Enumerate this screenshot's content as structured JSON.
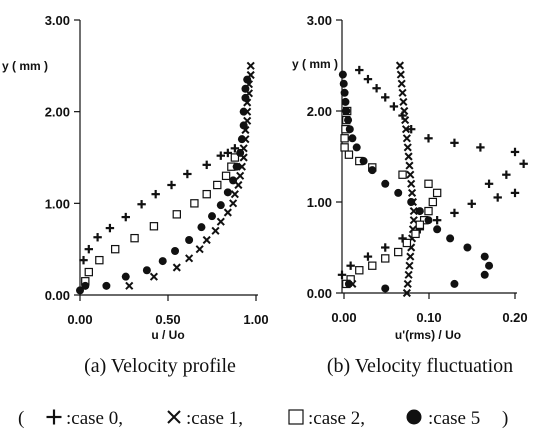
{
  "chart_data": [
    {
      "type": "scatter",
      "ylabel": "y ( mm )",
      "xlabel": "u / Uo",
      "caption": "(a)  Velocity  profile",
      "xlim": [
        0,
        1.0
      ],
      "ylim": [
        0,
        3.0
      ],
      "xticks": [
        "0.00",
        "0.50",
        "1.00"
      ],
      "yticks": [
        "0.00",
        "1.00",
        "2.00",
        "3.00"
      ],
      "series": [
        {
          "key": "case0",
          "marker": "plus",
          "points": [
            [
              0.02,
              0.38
            ],
            [
              0.05,
              0.5
            ],
            [
              0.1,
              0.63
            ],
            [
              0.17,
              0.73
            ],
            [
              0.26,
              0.85
            ],
            [
              0.35,
              0.99
            ],
            [
              0.43,
              1.1
            ],
            [
              0.52,
              1.2
            ],
            [
              0.61,
              1.32
            ],
            [
              0.72,
              1.42
            ],
            [
              0.8,
              1.52
            ],
            [
              0.84,
              1.55
            ],
            [
              0.88,
              1.6
            ]
          ]
        },
        {
          "key": "case1",
          "marker": "x",
          "points": [
            [
              0.28,
              0.1
            ],
            [
              0.42,
              0.2
            ],
            [
              0.55,
              0.3
            ],
            [
              0.62,
              0.4
            ],
            [
              0.68,
              0.5
            ],
            [
              0.72,
              0.6
            ],
            [
              0.77,
              0.7
            ],
            [
              0.8,
              0.8
            ],
            [
              0.84,
              0.9
            ],
            [
              0.87,
              1.0
            ],
            [
              0.88,
              1.1
            ],
            [
              0.9,
              1.2
            ],
            [
              0.91,
              1.3
            ],
            [
              0.92,
              1.4
            ],
            [
              0.93,
              1.5
            ],
            [
              0.93,
              1.6
            ],
            [
              0.94,
              1.7
            ],
            [
              0.94,
              1.8
            ],
            [
              0.95,
              1.9
            ],
            [
              0.95,
              2.0
            ],
            [
              0.95,
              2.1
            ],
            [
              0.96,
              2.2
            ],
            [
              0.96,
              2.3
            ],
            [
              0.97,
              2.4
            ],
            [
              0.97,
              2.5
            ]
          ]
        },
        {
          "key": "case2",
          "marker": "square",
          "points": [
            [
              0.03,
              0.15
            ],
            [
              0.05,
              0.25
            ],
            [
              0.11,
              0.38
            ],
            [
              0.2,
              0.5
            ],
            [
              0.31,
              0.62
            ],
            [
              0.42,
              0.75
            ],
            [
              0.55,
              0.88
            ],
            [
              0.65,
              1.0
            ],
            [
              0.72,
              1.1
            ],
            [
              0.78,
              1.2
            ],
            [
              0.83,
              1.3
            ],
            [
              0.86,
              1.4
            ],
            [
              0.88,
              1.5
            ]
          ]
        },
        {
          "key": "case5",
          "marker": "circle",
          "points": [
            [
              0.0,
              0.05
            ],
            [
              0.03,
              0.1
            ],
            [
              0.15,
              0.1
            ],
            [
              0.26,
              0.2
            ],
            [
              0.38,
              0.27
            ],
            [
              0.47,
              0.37
            ],
            [
              0.54,
              0.48
            ],
            [
              0.62,
              0.6
            ],
            [
              0.69,
              0.74
            ],
            [
              0.75,
              0.86
            ],
            [
              0.8,
              0.98
            ],
            [
              0.84,
              1.12
            ],
            [
              0.87,
              1.25
            ],
            [
              0.89,
              1.4
            ],
            [
              0.91,
              1.55
            ],
            [
              0.92,
              1.7
            ],
            [
              0.93,
              1.85
            ],
            [
              0.93,
              2.0
            ],
            [
              0.94,
              2.15
            ],
            [
              0.94,
              2.25
            ],
            [
              0.95,
              2.35
            ]
          ]
        }
      ]
    },
    {
      "type": "scatter",
      "ylabel": "y ( mm )",
      "xlabel": "u'(rms) / Uo",
      "caption": "(b)  Velocity  fluctuation",
      "xlim": [
        0,
        0.2
      ],
      "ylim": [
        0,
        3.0
      ],
      "xticks": [
        "0.00",
        "0.10",
        "0.20"
      ],
      "yticks": [
        "0.00",
        "1.00",
        "2.00",
        "3.00"
      ],
      "series": [
        {
          "key": "case0",
          "marker": "plus",
          "points": [
            [
              0.0,
              0.2
            ],
            [
              0.01,
              0.3
            ],
            [
              0.03,
              0.4
            ],
            [
              0.05,
              0.5
            ],
            [
              0.07,
              0.6
            ],
            [
              0.09,
              0.7
            ],
            [
              0.11,
              0.8
            ],
            [
              0.13,
              0.88
            ],
            [
              0.15,
              0.98
            ],
            [
              0.18,
              1.05
            ],
            [
              0.2,
              1.1
            ],
            [
              0.17,
              1.2
            ],
            [
              0.19,
              1.3
            ],
            [
              0.21,
              1.42
            ],
            [
              0.2,
              1.55
            ],
            [
              0.16,
              1.6
            ],
            [
              0.13,
              1.65
            ],
            [
              0.1,
              1.7
            ],
            [
              0.08,
              1.8
            ],
            [
              0.07,
              1.95
            ],
            [
              0.06,
              2.05
            ],
            [
              0.05,
              2.15
            ],
            [
              0.04,
              2.25
            ],
            [
              0.03,
              2.35
            ],
            [
              0.02,
              2.45
            ]
          ]
        },
        {
          "key": "case1",
          "marker": "x",
          "points": [
            [
              0.012,
              0.1
            ],
            [
              0.075,
              0.0
            ],
            [
              0.076,
              0.1
            ],
            [
              0.077,
              0.2
            ],
            [
              0.078,
              0.3
            ],
            [
              0.079,
              0.4
            ],
            [
              0.08,
              0.5
            ],
            [
              0.081,
              0.6
            ],
            [
              0.082,
              0.7
            ],
            [
              0.083,
              0.8
            ],
            [
              0.083,
              0.9
            ],
            [
              0.082,
              1.0
            ],
            [
              0.081,
              1.1
            ],
            [
              0.08,
              1.2
            ],
            [
              0.079,
              1.3
            ],
            [
              0.078,
              1.4
            ],
            [
              0.077,
              1.5
            ],
            [
              0.076,
              1.6
            ],
            [
              0.075,
              1.7
            ],
            [
              0.074,
              1.8
            ],
            [
              0.073,
              1.9
            ],
            [
              0.072,
              2.0
            ],
            [
              0.071,
              2.1
            ],
            [
              0.07,
              2.2
            ],
            [
              0.069,
              2.3
            ],
            [
              0.068,
              2.4
            ],
            [
              0.067,
              2.5
            ]
          ]
        },
        {
          "key": "case2",
          "marker": "square",
          "points": [
            [
              0.003,
              1.6
            ],
            [
              0.003,
              1.7
            ],
            [
              0.004,
              1.8
            ],
            [
              0.005,
              1.9
            ],
            [
              0.006,
              2.0
            ],
            [
              0.008,
              1.52
            ],
            [
              0.02,
              1.45
            ],
            [
              0.035,
              1.38
            ],
            [
              0.07,
              1.3
            ],
            [
              0.1,
              1.2
            ],
            [
              0.11,
              1.1
            ],
            [
              0.105,
              1.0
            ],
            [
              0.1,
              0.9
            ],
            [
              0.095,
              0.8
            ],
            [
              0.09,
              0.75
            ],
            [
              0.085,
              0.65
            ],
            [
              0.075,
              0.55
            ],
            [
              0.065,
              0.45
            ],
            [
              0.05,
              0.38
            ],
            [
              0.035,
              0.3
            ],
            [
              0.02,
              0.25
            ],
            [
              0.01,
              0.15
            ],
            [
              0.005,
              0.1
            ]
          ]
        },
        {
          "key": "case5",
          "marker": "circle",
          "points": [
            [
              0.001,
              2.4
            ],
            [
              0.002,
              2.3
            ],
            [
              0.003,
              2.2
            ],
            [
              0.004,
              2.1
            ],
            [
              0.005,
              2.0
            ],
            [
              0.007,
              1.9
            ],
            [
              0.009,
              1.8
            ],
            [
              0.012,
              1.7
            ],
            [
              0.017,
              1.6
            ],
            [
              0.025,
              1.45
            ],
            [
              0.035,
              1.35
            ],
            [
              0.05,
              1.2
            ],
            [
              0.065,
              1.1
            ],
            [
              0.08,
              1.0
            ],
            [
              0.09,
              0.9
            ],
            [
              0.1,
              0.8
            ],
            [
              0.11,
              0.7
            ],
            [
              0.125,
              0.6
            ],
            [
              0.145,
              0.5
            ],
            [
              0.165,
              0.4
            ],
            [
              0.17,
              0.3
            ],
            [
              0.165,
              0.2
            ],
            [
              0.13,
              0.1
            ],
            [
              0.05,
              0.05
            ],
            [
              0.008,
              0.1
            ]
          ]
        }
      ]
    }
  ],
  "legend": {
    "open": "(",
    "close": ")",
    "items": [
      {
        "key": "case0",
        "marker": "plus",
        "label": ":case 0,"
      },
      {
        "key": "case1",
        "marker": "x",
        "label": ":case 1,"
      },
      {
        "key": "case2",
        "marker": "square",
        "label": ":case 2,"
      },
      {
        "key": "case5",
        "marker": "circle",
        "label": ":case 5"
      }
    ]
  },
  "colors": {
    "ink": "#111111",
    "background": "#ffffff"
  }
}
